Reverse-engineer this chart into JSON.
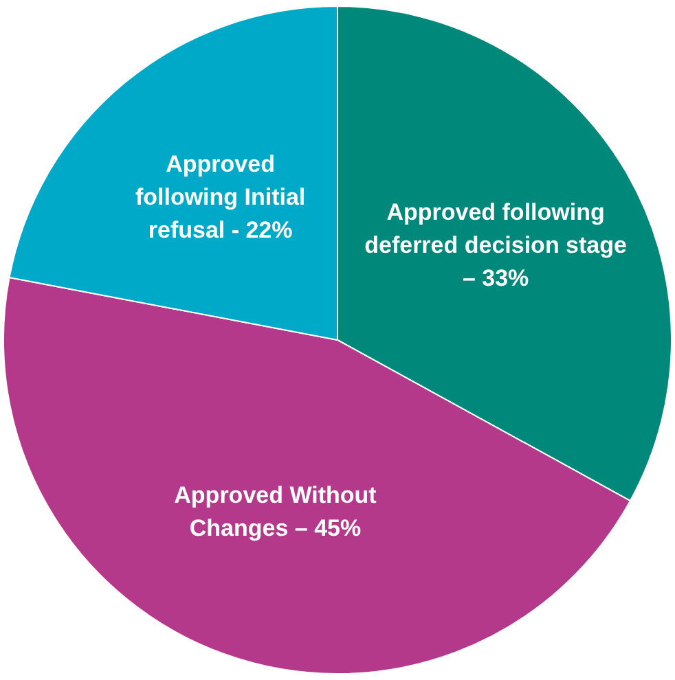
{
  "chart_data": {
    "type": "pie",
    "categories": [
      "Approved following deferred decision stage – 33%",
      "Approved Without Changes – 45%",
      "Approved following Initial refusal - 22%"
    ],
    "values": [
      33,
      45,
      22
    ],
    "colors": [
      "#00897b",
      "#b5398a",
      "#00a9c8"
    ]
  }
}
